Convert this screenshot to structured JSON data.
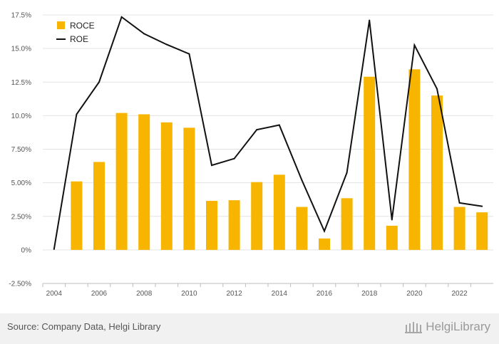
{
  "chart_data": {
    "type": "bar",
    "categories": [
      "2004",
      "2005",
      "2006",
      "2007",
      "2008",
      "2009",
      "2010",
      "2011",
      "2012",
      "2013",
      "2014",
      "2015",
      "2016",
      "2017",
      "2018",
      "2019",
      "2020",
      "2021",
      "2022",
      "2023"
    ],
    "x_tick_labels": [
      "2004",
      "2006",
      "2008",
      "2010",
      "2012",
      "2014",
      "2016",
      "2018",
      "2020",
      "2022"
    ],
    "y_tick_labels": [
      "-2.50%",
      "0%",
      "2.50%",
      "5.00%",
      "7.50%",
      "10.0%",
      "12.5%",
      "15.0%",
      "17.5%"
    ],
    "ylim": [
      -2.5,
      17.5
    ],
    "y_ticks": [
      -2.5,
      0,
      2.5,
      5,
      7.5,
      10,
      12.5,
      15,
      17.5
    ],
    "grid": true,
    "legend_position": "top-left",
    "series": [
      {
        "name": "ROCE",
        "type": "bar",
        "color": "#f7b500",
        "values": [
          null,
          5.1,
          6.55,
          10.2,
          10.1,
          9.5,
          9.1,
          3.65,
          3.7,
          5.05,
          5.6,
          3.2,
          0.85,
          3.85,
          12.9,
          1.8,
          13.45,
          11.5,
          3.2,
          2.8
        ]
      },
      {
        "name": "ROE",
        "type": "line",
        "color": "#111111",
        "values": [
          0.05,
          10.1,
          12.5,
          17.35,
          16.1,
          15.3,
          14.6,
          6.3,
          6.8,
          8.95,
          9.3,
          5.2,
          1.4,
          5.75,
          17.1,
          2.25,
          15.25,
          12.0,
          3.5,
          3.25
        ]
      }
    ]
  },
  "footer": {
    "source": "Source: Company Data, Helgi Library",
    "brand": "HelgiLibrary",
    "brand_icon": "library-building-icon"
  }
}
